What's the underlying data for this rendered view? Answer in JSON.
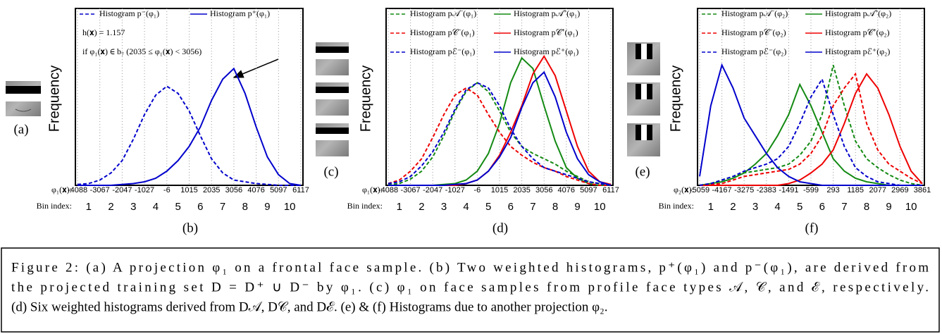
{
  "chart_data": [
    {
      "type": "line",
      "ylabel": "Frequency",
      "xlabel": "φ₁(𝐱):",
      "bin_axis_label": "Bin index:",
      "xlim": [
        -4088,
        6117
      ],
      "xticks": [
        -4088,
        -3067,
        -2047,
        -1027,
        -6,
        1015,
        2035,
        3056,
        4076,
        5097,
        6117
      ],
      "ylim": [
        0,
        1
      ],
      "grid": true,
      "bin_index_labels": [
        "1",
        "2",
        "3",
        "4",
        "5",
        "6",
        "7",
        "8",
        "9",
        "10"
      ],
      "x": [
        -4088,
        -3578,
        -3067,
        -2557,
        -2047,
        -1537,
        -1027,
        -516,
        -6,
        505,
        1015,
        1525,
        2035,
        2546,
        3056,
        3566,
        4076,
        4587,
        5097,
        5607,
        6117
      ],
      "series": [
        {
          "name": "Histogram p⁻(φ₁)",
          "color": "#0000cc",
          "style": "dashed",
          "values": [
            0.005,
            0.01,
            0.03,
            0.07,
            0.14,
            0.26,
            0.4,
            0.51,
            0.56,
            0.52,
            0.42,
            0.28,
            0.15,
            0.07,
            0.03,
            0.02,
            0.01,
            0.005,
            0,
            0,
            0
          ]
        },
        {
          "name": "Histogram p⁺(φ₁)",
          "color": "#0000cc",
          "style": "solid",
          "values": [
            0,
            0,
            0,
            0,
            0.005,
            0.01,
            0.02,
            0.04,
            0.08,
            0.14,
            0.22,
            0.33,
            0.48,
            0.6,
            0.66,
            0.52,
            0.33,
            0.16,
            0.06,
            0.01,
            0
          ]
        }
      ],
      "annotations": [
        "h(𝐱) = 1.157",
        "if φ₁(𝐱) ∈ b₇ (2035 ≤ φ₁(𝐱) < 3056)"
      ]
    },
    {
      "type": "line",
      "ylabel": "Frequency",
      "xlabel": "φ₁(𝐱):",
      "bin_axis_label": "Bin index:",
      "xlim": [
        -4088,
        6117
      ],
      "xticks": [
        -4088,
        -3067,
        -2047,
        -1027,
        -6,
        1015,
        2035,
        3056,
        4076,
        5097,
        6117
      ],
      "ylim": [
        0,
        1
      ],
      "grid": true,
      "bin_index_labels": [
        "1",
        "2",
        "3",
        "4",
        "5",
        "6",
        "7",
        "8",
        "9",
        "10"
      ],
      "x": [
        -4088,
        -3578,
        -3067,
        -2557,
        -2047,
        -1537,
        -1027,
        -516,
        -6,
        505,
        1015,
        1525,
        2035,
        2546,
        3056,
        3566,
        4076,
        4587,
        5097,
        5607,
        6117
      ],
      "series": [
        {
          "name": "Histogram p𝒜⁻(φ₁)",
          "color": "#138a13",
          "style": "dashed",
          "values": [
            0.003,
            0.01,
            0.035,
            0.08,
            0.16,
            0.28,
            0.42,
            0.53,
            0.58,
            0.53,
            0.42,
            0.3,
            0.22,
            0.18,
            0.15,
            0.12,
            0.08,
            0.05,
            0.02,
            0.01,
            0
          ]
        },
        {
          "name": "Histogram p𝒜⁺(φ₁)",
          "color": "#138a13",
          "style": "solid",
          "values": [
            0,
            0,
            0,
            0,
            0,
            0.005,
            0.01,
            0.03,
            0.08,
            0.18,
            0.35,
            0.58,
            0.72,
            0.66,
            0.45,
            0.25,
            0.1,
            0.04,
            0.01,
            0,
            0
          ]
        },
        {
          "name": "Histogram p𝒞⁻(φ₁)",
          "color": "#ee0000",
          "style": "dashed",
          "values": [
            0.01,
            0.03,
            0.08,
            0.15,
            0.27,
            0.4,
            0.51,
            0.55,
            0.51,
            0.4,
            0.3,
            0.22,
            0.17,
            0.13,
            0.1,
            0.08,
            0.05,
            0.03,
            0.01,
            0,
            0
          ]
        },
        {
          "name": "Histogram p𝒞⁺(φ₁)",
          "color": "#ee0000",
          "style": "solid",
          "values": [
            0,
            0,
            0,
            0,
            0,
            0,
            0,
            0.01,
            0.03,
            0.08,
            0.17,
            0.3,
            0.45,
            0.63,
            0.73,
            0.62,
            0.42,
            0.22,
            0.08,
            0.02,
            0.005
          ]
        },
        {
          "name": "Histogram pℰ⁻(φ₁)",
          "color": "#0000cc",
          "style": "dashed",
          "values": [
            0.01,
            0.02,
            0.05,
            0.11,
            0.19,
            0.3,
            0.43,
            0.54,
            0.58,
            0.55,
            0.45,
            0.32,
            0.22,
            0.15,
            0.1,
            0.08,
            0.06,
            0.04,
            0.02,
            0.01,
            0
          ]
        },
        {
          "name": "Histogram pℰ⁺(φ₁)",
          "color": "#0000cc",
          "style": "solid",
          "values": [
            0,
            0,
            0,
            0,
            0,
            0,
            0.005,
            0.01,
            0.03,
            0.08,
            0.16,
            0.27,
            0.44,
            0.58,
            0.64,
            0.5,
            0.3,
            0.15,
            0.06,
            0.02,
            0
          ]
        }
      ]
    },
    {
      "type": "line",
      "ylabel": "Frequency",
      "xlabel": "φ₂(𝐱):",
      "bin_axis_label": "Bin index:",
      "xlim": [
        -5059,
        3861
      ],
      "xticks": [
        -5059,
        -4167,
        -3275,
        -2383,
        -1491,
        -599,
        293,
        1185,
        2077,
        2969,
        3861
      ],
      "ylim": [
        0,
        1
      ],
      "grid": true,
      "bin_index_labels": [
        "1",
        "2",
        "3",
        "4",
        "5",
        "6",
        "7",
        "8",
        "9",
        "10"
      ],
      "x": [
        -5059,
        -4613,
        -4167,
        -3721,
        -3275,
        -2829,
        -2383,
        -1937,
        -1491,
        -1045,
        -599,
        -153,
        293,
        739,
        1185,
        1631,
        2077,
        2523,
        2969,
        3415,
        3861
      ],
      "series": [
        {
          "name": "Histogram p𝒜⁻(φ₂)",
          "color": "#138a13",
          "style": "dashed",
          "values": [
            0,
            0.01,
            0.03,
            0.05,
            0.07,
            0.08,
            0.09,
            0.1,
            0.12,
            0.17,
            0.25,
            0.4,
            0.68,
            0.45,
            0.25,
            0.15,
            0.1,
            0.06,
            0.03,
            0.01,
            0
          ]
        },
        {
          "name": "Histogram p𝒜⁺(φ₂)",
          "color": "#138a13",
          "style": "solid",
          "values": [
            0,
            0.01,
            0.02,
            0.04,
            0.07,
            0.12,
            0.18,
            0.28,
            0.4,
            0.57,
            0.45,
            0.3,
            0.15,
            0.08,
            0.04,
            0.02,
            0.01,
            0,
            0,
            0,
            0
          ]
        },
        {
          "name": "Histogram p𝒞⁻(φ₂)",
          "color": "#ee0000",
          "style": "dashed",
          "values": [
            0,
            0.005,
            0.01,
            0.03,
            0.05,
            0.06,
            0.07,
            0.08,
            0.09,
            0.12,
            0.18,
            0.28,
            0.45,
            0.55,
            0.63,
            0.35,
            0.2,
            0.12,
            0.08,
            0.04,
            0.01
          ]
        },
        {
          "name": "Histogram p𝒞⁺(φ₂)",
          "color": "#ee0000",
          "style": "solid",
          "values": [
            0,
            0,
            0,
            0,
            0,
            0,
            0,
            0,
            0.01,
            0.03,
            0.07,
            0.12,
            0.2,
            0.35,
            0.52,
            0.63,
            0.55,
            0.4,
            0.22,
            0.08,
            0.01
          ]
        },
        {
          "name": "Histogram pℰ⁻(φ₂)",
          "color": "#0000cc",
          "style": "dashed",
          "values": [
            0,
            0.01,
            0.03,
            0.05,
            0.08,
            0.1,
            0.12,
            0.15,
            0.22,
            0.35,
            0.5,
            0.6,
            0.4,
            0.22,
            0.1,
            0.05,
            0.02,
            0.01,
            0,
            0,
            0
          ]
        },
        {
          "name": "Histogram pℰ⁺(φ₂)",
          "color": "#0000cc",
          "style": "solid",
          "values": [
            0.05,
            0.45,
            0.68,
            0.55,
            0.38,
            0.28,
            0.18,
            0.1,
            0.05,
            0.02,
            0.01,
            0,
            0,
            0,
            0,
            0,
            0,
            0,
            0,
            0,
            0
          ]
        }
      ]
    }
  ],
  "panel_labels": [
    "(a)",
    "(b)",
    "(c)",
    "(d)",
    "(e)",
    "(f)"
  ],
  "caption": [
    "Figure 2: (a) A projection φ₁ on a frontal face sample. (b) Two weighted histograms, p⁺(φ₁) and p⁻(φ₁), are derived from",
    "the projected training set D = D⁺ ∪ D⁻ by φ₁. (c) φ₁ on face samples from profile face types 𝒜, 𝒞, and ℰ, respectively.",
    "(d) Six weighted histograms derived from D𝒜, D𝒞, and Dℰ. (e) & (f) Histograms due to another projection φ₂."
  ]
}
